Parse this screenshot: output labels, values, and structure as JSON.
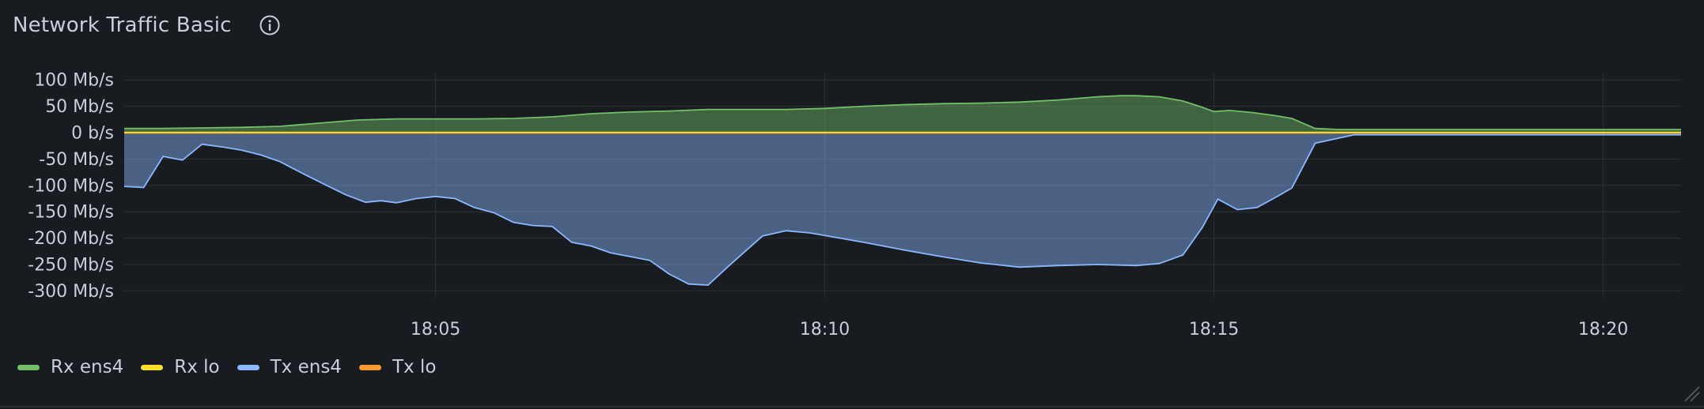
{
  "panel": {
    "title": "Network Traffic Basic",
    "info_icon": "info-icon"
  },
  "chart_data": {
    "type": "area",
    "title": "Network Traffic Basic",
    "xlabel": "",
    "ylabel": "",
    "unit": "Mb/s",
    "y_ticks": [
      "100 Mb/s",
      "50 Mb/s",
      "0 b/s",
      "-50 Mb/s",
      "-100 Mb/s",
      "-150 Mb/s",
      "-200 Mb/s",
      "-250 Mb/s",
      "-300 Mb/s"
    ],
    "y_tick_values": [
      100,
      50,
      0,
      -50,
      -100,
      -150,
      -200,
      -250,
      -300
    ],
    "ylim": [
      -310,
      105
    ],
    "x_ticks": [
      "18:05",
      "18:10",
      "18:15",
      "18:20"
    ],
    "x_tick_values": [
      5,
      10,
      15,
      20
    ],
    "xlim": [
      1.0,
      21.0
    ],
    "grid": true,
    "legend_position": "bottom-left",
    "series": [
      {
        "name": "Rx ens4",
        "color": "#73bf69",
        "x": [
          1.0,
          1.5,
          2.0,
          2.5,
          3.0,
          3.5,
          4.0,
          4.5,
          5.0,
          5.5,
          6.0,
          6.5,
          7.0,
          7.5,
          8.0,
          8.5,
          9.0,
          9.5,
          10.0,
          10.5,
          11.0,
          11.5,
          12.0,
          12.5,
          13.0,
          13.5,
          13.8,
          14.0,
          14.3,
          14.6,
          14.85,
          15.0,
          15.2,
          15.5,
          15.8,
          16.0,
          16.3,
          16.6,
          17.0,
          18.0,
          19.0,
          20.0,
          21.0
        ],
        "y": [
          8,
          8,
          9,
          10,
          12,
          18,
          24,
          26,
          26,
          26,
          27,
          30,
          36,
          39,
          41,
          44,
          44,
          44,
          46,
          50,
          53,
          55,
          56,
          58,
          62,
          68,
          70,
          70,
          68,
          60,
          48,
          40,
          42,
          38,
          32,
          27,
          8,
          6,
          6,
          6,
          6,
          6,
          6
        ]
      },
      {
        "name": "Rx lo",
        "color": "#fade2a",
        "x": [
          1.0,
          21.0
        ],
        "y": [
          0.5,
          0.5
        ]
      },
      {
        "name": "Tx ens4",
        "color": "#8ab8ff",
        "x": [
          1.0,
          1.25,
          1.5,
          1.75,
          2.0,
          2.25,
          2.5,
          2.75,
          3.0,
          3.3,
          3.6,
          3.85,
          4.1,
          4.3,
          4.5,
          4.75,
          5.0,
          5.25,
          5.5,
          5.75,
          6.0,
          6.25,
          6.5,
          6.75,
          7.0,
          7.25,
          7.5,
          7.75,
          8.0,
          8.25,
          8.5,
          8.75,
          9.0,
          9.2,
          9.5,
          9.8,
          10.0,
          10.5,
          11.0,
          11.5,
          12.0,
          12.5,
          13.0,
          13.5,
          14.0,
          14.3,
          14.6,
          14.85,
          15.05,
          15.3,
          15.55,
          15.8,
          16.0,
          16.3,
          16.8,
          21.0
        ],
        "y": [
          -102,
          -104,
          -45,
          -52,
          -22,
          -27,
          -33,
          -42,
          -55,
          -78,
          -100,
          -118,
          -132,
          -129,
          -133,
          -125,
          -121,
          -125,
          -142,
          -152,
          -170,
          -176,
          -178,
          -208,
          -215,
          -228,
          -235,
          -242,
          -268,
          -287,
          -289,
          -255,
          -222,
          -196,
          -186,
          -190,
          -195,
          -208,
          -222,
          -235,
          -247,
          -255,
          -252,
          -250,
          -252,
          -248,
          -232,
          -180,
          -126,
          -146,
          -142,
          -122,
          -105,
          -20,
          -4,
          -4
        ]
      },
      {
        "name": "Tx lo",
        "color": "#ff9830",
        "x": [
          1.0,
          21.0
        ],
        "y": [
          -0.5,
          -0.5
        ]
      }
    ]
  }
}
